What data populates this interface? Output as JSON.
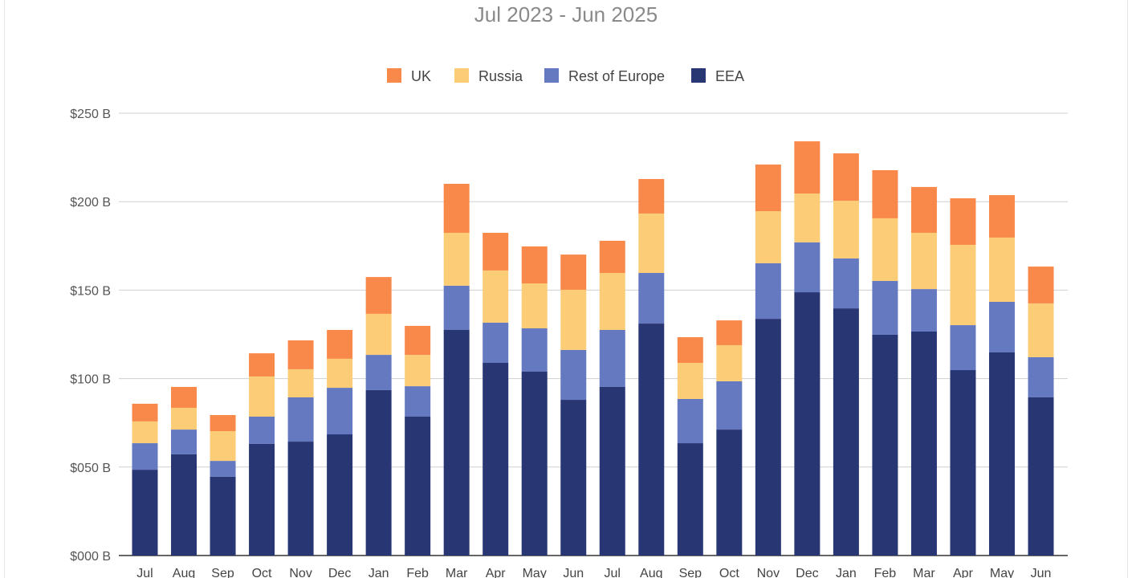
{
  "chart_data": {
    "type": "bar",
    "stacked": true,
    "title": "Jul 2023 - Jun 2025",
    "xlabel": "",
    "ylabel": "",
    "ylim": [
      0,
      250
    ],
    "yticks": [
      0,
      50,
      100,
      150,
      200,
      250
    ],
    "ytick_labels": [
      "$000 B",
      "$050 B",
      "$100 B",
      "$150 B",
      "$200 B",
      "$250 B"
    ],
    "grid": true,
    "legend_position": "top-center",
    "categories": [
      "Jul",
      "Aug",
      "Sep",
      "Oct",
      "Nov",
      "Dec",
      "Jan",
      "Feb",
      "Mar",
      "Apr",
      "May",
      "Jun",
      "Jul",
      "Aug",
      "Sep",
      "Oct",
      "Nov",
      "Dec",
      "Jan",
      "Feb",
      "Mar",
      "Apr",
      "May",
      "Jun"
    ],
    "series": [
      {
        "name": "EEA",
        "color": "#283673",
        "values": [
          48.5,
          57.2,
          44.5,
          63.1,
          64.4,
          68.5,
          93.5,
          78.5,
          127.5,
          108.9,
          103.9,
          88.0,
          95.3,
          131.1,
          63.5,
          71.2,
          133.8,
          148.8,
          139.7,
          124.8,
          126.6,
          104.8,
          114.8,
          89.4
        ]
      },
      {
        "name": "Rest of Europe",
        "color": "#6479c0",
        "values": [
          15.0,
          14.0,
          9.0,
          15.4,
          25.0,
          26.3,
          19.9,
          17.2,
          25.0,
          22.7,
          24.5,
          28.2,
          32.2,
          28.6,
          25.0,
          27.3,
          31.4,
          28.2,
          28.2,
          30.4,
          24.0,
          25.4,
          28.6,
          22.7
        ]
      },
      {
        "name": "Russia",
        "color": "#fccd76",
        "values": [
          12.3,
          12.3,
          16.8,
          22.7,
          15.9,
          16.4,
          23.2,
          17.7,
          29.9,
          29.5,
          25.4,
          34.0,
          32.2,
          33.6,
          20.4,
          20.4,
          29.4,
          27.6,
          32.6,
          35.4,
          31.8,
          45.4,
          36.3,
          30.4
        ]
      },
      {
        "name": "UK",
        "color": "#f9894b",
        "values": [
          10.0,
          11.8,
          9.1,
          13.1,
          16.3,
          16.3,
          20.8,
          16.4,
          27.7,
          21.3,
          20.9,
          19.9,
          18.2,
          19.5,
          14.5,
          14.0,
          26.4,
          29.5,
          26.8,
          27.2,
          25.9,
          26.3,
          24.0,
          20.8
        ]
      }
    ],
    "legend_order": [
      "UK",
      "Russia",
      "Rest of Europe",
      "EEA"
    ]
  }
}
